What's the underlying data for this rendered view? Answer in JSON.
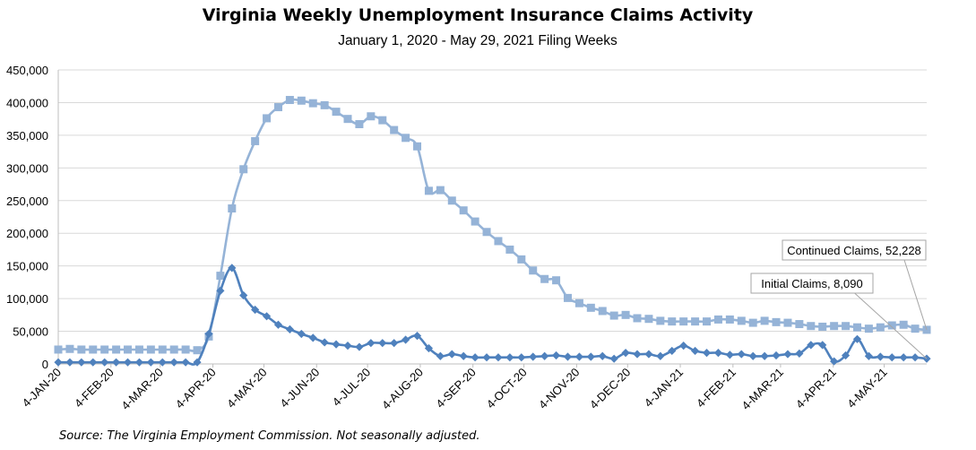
{
  "chart_data": {
    "type": "line",
    "title": "Virginia Weekly Unemployment Insurance Claims Activity",
    "subtitle": "January 1, 2020 - May 29, 2021 Filing Weeks",
    "xlabel": "",
    "ylabel": "",
    "ylim": [
      0,
      450000
    ],
    "yticks": [
      "0",
      "50,000",
      "100,000",
      "150,000",
      "200,000",
      "250,000",
      "300,000",
      "350,000",
      "400,000",
      "450,000"
    ],
    "xticks": [
      "4-JAN-20",
      "4-FEB-20",
      "4-MAR-20",
      "4-APR-20",
      "4-MAY-20",
      "4-JUN-20",
      "4-JUL-20",
      "4-AUG-20",
      "4-SEP-20",
      "4-OCT-20",
      "4-NOV-20",
      "4-DEC-20",
      "4-JAN-21",
      "4-FEB-21",
      "4-MAR-21",
      "4-APR-21",
      "4-MAY-21"
    ],
    "x_start": "2020-01-04",
    "x_end": "2021-05-29",
    "grid": true,
    "series": [
      {
        "name": "Continued Claims",
        "color": "#95b3d7",
        "marker": "square",
        "values": [
          22000,
          23000,
          22000,
          22000,
          22000,
          22000,
          22000,
          22000,
          22000,
          22000,
          22000,
          22000,
          21000,
          42000,
          135000,
          238000,
          298000,
          341000,
          376000,
          393000,
          404000,
          403000,
          399000,
          396000,
          386000,
          375000,
          367000,
          379000,
          373000,
          358000,
          346000,
          333000,
          265000,
          266000,
          250000,
          235000,
          218000,
          202000,
          188000,
          175000,
          160000,
          143000,
          130000,
          128000,
          101000,
          93000,
          86000,
          81000,
          74000,
          75000,
          70000,
          69000,
          66000,
          65000,
          65000,
          65000,
          65000,
          68000,
          68000,
          66000,
          63000,
          66000,
          64000,
          63000,
          61000,
          58000,
          57000,
          58000,
          58000,
          56000,
          54000,
          56000,
          59000,
          60000,
          54000,
          52228
        ]
      },
      {
        "name": "Initial Claims",
        "color": "#4f81bd",
        "marker": "diamond",
        "values": [
          2500,
          2500,
          2500,
          2500,
          2500,
          2500,
          2500,
          2500,
          2500,
          2500,
          2500,
          2500,
          2500,
          46000,
          112000,
          147000,
          105000,
          83000,
          73000,
          60000,
          53000,
          46000,
          40000,
          33000,
          30000,
          28000,
          26000,
          32000,
          32000,
          32000,
          37000,
          43000,
          24000,
          12000,
          15000,
          12000,
          10000,
          10000,
          10000,
          10000,
          10000,
          11000,
          12000,
          13000,
          11000,
          11000,
          11000,
          12000,
          8000,
          17000,
          15000,
          15000,
          12000,
          20000,
          28000,
          20000,
          17000,
          17000,
          14000,
          15000,
          12000,
          12000,
          13000,
          15000,
          16000,
          29000,
          29000,
          4000,
          13000,
          38000,
          12000,
          11000,
          10000,
          10000,
          10000,
          8090
        ]
      }
    ],
    "annotations": [
      {
        "text": "Continued Claims, 52,228",
        "series": "Continued Claims"
      },
      {
        "text": "Initial Claims, 8,090",
        "series": "Initial Claims"
      }
    ]
  },
  "source_note": "Source: The Virginia Employment Commission. Not seasonally adjusted."
}
